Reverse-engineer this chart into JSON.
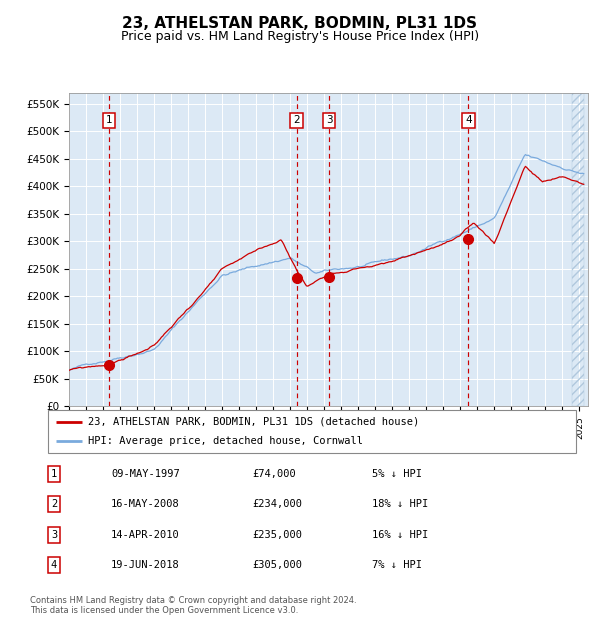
{
  "title": "23, ATHELSTAN PARK, BODMIN, PL31 1DS",
  "subtitle": "Price paid vs. HM Land Registry's House Price Index (HPI)",
  "title_fontsize": 11,
  "subtitle_fontsize": 9,
  "bg_color": "#dce9f5",
  "grid_color": "#ffffff",
  "hpi_color": "#7aaadd",
  "price_color": "#cc0000",
  "ylim_max": 570000,
  "yticks": [
    0,
    50000,
    100000,
    150000,
    200000,
    250000,
    300000,
    350000,
    400000,
    450000,
    500000,
    550000
  ],
  "ytick_labels": [
    "£0",
    "£50K",
    "£100K",
    "£150K",
    "£200K",
    "£250K",
    "£300K",
    "£350K",
    "£400K",
    "£450K",
    "£500K",
    "£550K"
  ],
  "xlim_start": 1995.0,
  "xlim_end": 2025.5,
  "sale_dates": [
    1997.36,
    2008.37,
    2010.29,
    2018.47
  ],
  "sale_prices": [
    74000,
    234000,
    235000,
    305000
  ],
  "sale_labels": [
    "1",
    "2",
    "3",
    "4"
  ],
  "legend_line1": "23, ATHELSTAN PARK, BODMIN, PL31 1DS (detached house)",
  "legend_line2": "HPI: Average price, detached house, Cornwall",
  "table_data": [
    [
      "1",
      "09-MAY-1997",
      "£74,000",
      "5% ↓ HPI"
    ],
    [
      "2",
      "16-MAY-2008",
      "£234,000",
      "18% ↓ HPI"
    ],
    [
      "3",
      "14-APR-2010",
      "£235,000",
      "16% ↓ HPI"
    ],
    [
      "4",
      "19-JUN-2018",
      "£305,000",
      "7% ↓ HPI"
    ]
  ],
  "footnote": "Contains HM Land Registry data © Crown copyright and database right 2024.\nThis data is licensed under the Open Government Licence v3.0.",
  "dashed_line_color": "#cc0000",
  "hatch_color": "#b0c8dd"
}
